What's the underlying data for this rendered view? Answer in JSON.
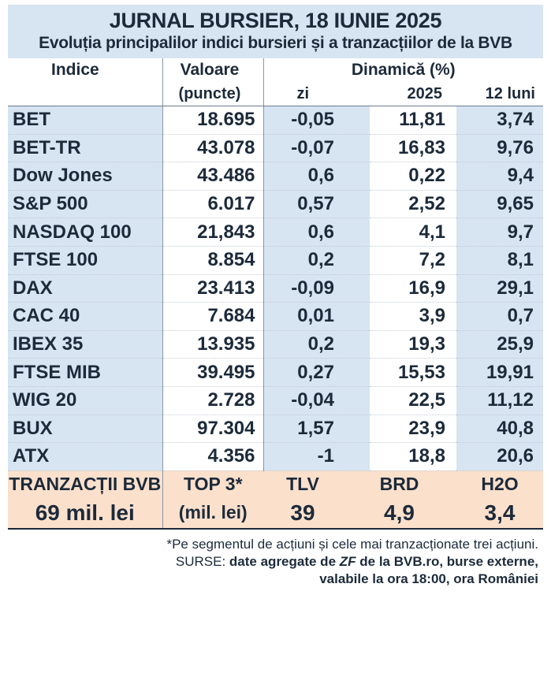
{
  "title": "JURNAL BURSIER, 18 IUNIE 2025",
  "subtitle": "Evoluția principalilor indici bursieri și a tranzacțiilor de la BVB",
  "headers": {
    "indice": "Indice",
    "valoare": "Valoare",
    "puncte": "(puncte)",
    "dinamica": "Dinamică (%)",
    "zi": "zi",
    "an": "2025",
    "luni": "12 luni"
  },
  "rows": [
    {
      "name": "BET",
      "value": "18.695",
      "zi": "-0,05",
      "y2025": "11,81",
      "m12": "3,74"
    },
    {
      "name": "BET-TR",
      "value": "43.078",
      "zi": "-0,07",
      "y2025": "16,83",
      "m12": "9,76"
    },
    {
      "name": "Dow Jones",
      "value": "43.486",
      "zi": "0,6",
      "y2025": "0,22",
      "m12": "9,4"
    },
    {
      "name": "S&P 500",
      "value": "6.017",
      "zi": "0,57",
      "y2025": "2,52",
      "m12": "9,65"
    },
    {
      "name": "NASDAQ 100",
      "value": "21,843",
      "zi": "0,6",
      "y2025": "4,1",
      "m12": "9,7"
    },
    {
      "name": "FTSE 100",
      "value": "8.854",
      "zi": "0,2",
      "y2025": "7,2",
      "m12": "8,1"
    },
    {
      "name": "DAX",
      "value": "23.413",
      "zi": "-0,09",
      "y2025": "16,9",
      "m12": "29,1"
    },
    {
      "name": "CAC 40",
      "value": "7.684",
      "zi": "0,01",
      "y2025": "3,9",
      "m12": "0,7"
    },
    {
      "name": "IBEX 35",
      "value": "13.935",
      "zi": "0,2",
      "y2025": "19,3",
      "m12": "25,9"
    },
    {
      "name": "FTSE MIB",
      "value": "39.495",
      "zi": "0,27",
      "y2025": "15,53",
      "m12": "19,91"
    },
    {
      "name": "WIG 20",
      "value": "2.728",
      "zi": "-0,04",
      "y2025": "22,5",
      "m12": "11,12"
    },
    {
      "name": "BUX",
      "value": "97.304",
      "zi": "1,57",
      "y2025": "23,9",
      "m12": "40,8"
    },
    {
      "name": "ATX",
      "value": "4.356",
      "zi": "-1",
      "y2025": "18,8",
      "m12": "20,6"
    }
  ],
  "bvb": {
    "label": "TRANZACȚII BVB",
    "amount": "69 mil. lei",
    "top_label": "TOP 3*",
    "top_unit": "(mil. lei)",
    "top": [
      {
        "ticker": "TLV",
        "value": "39"
      },
      {
        "ticker": "BRD",
        "value": "4,9"
      },
      {
        "ticker": "H2O",
        "value": "3,4"
      }
    ]
  },
  "notes": {
    "footnote": "*Pe segmentul de acțiuni și cele mai tranzacționate trei acțiuni.",
    "sources_prefix": "SURSE: ",
    "sources_part1": "date agregate de ",
    "sources_zf": "ZF",
    "sources_part2": " de la BVB.ro, burse externe,",
    "sources_line2": "valabile la ora 18:00, ora României"
  },
  "colors": {
    "header_bg": "#d7e4f1",
    "bvb_bg": "#fbe0cc",
    "text": "#1c2a3a"
  }
}
